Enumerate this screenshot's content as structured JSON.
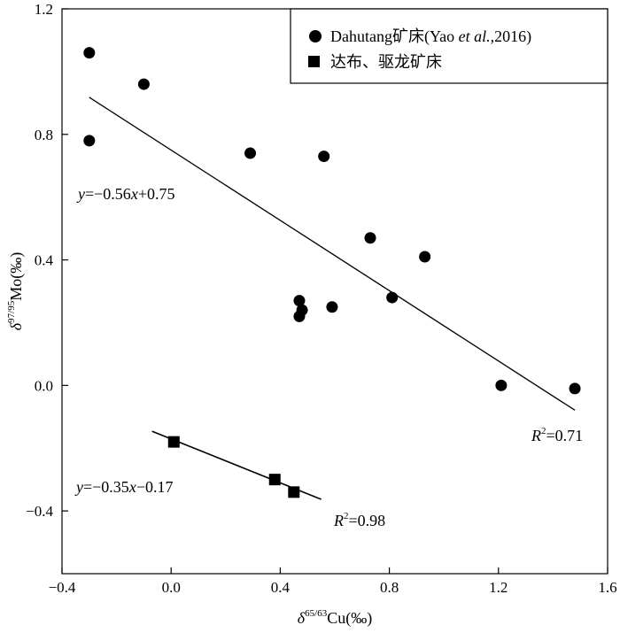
{
  "chart_data": {
    "type": "scatter",
    "xlabel": {
      "prefix": "δ",
      "sup": "65/63",
      "suffix": "Cu(‰)"
    },
    "ylabel": {
      "prefix": "δ",
      "sup": "97/95",
      "suffix": "Mo(‰)"
    },
    "xlim": [
      -0.4,
      1.6
    ],
    "ylim": [
      -0.6,
      1.2
    ],
    "xticks": [
      "−0.4",
      "0.0",
      "0.4",
      "0.8",
      "1.2",
      "1.6"
    ],
    "xtick_values": [
      -0.4,
      0.0,
      0.4,
      0.8,
      1.2,
      1.6
    ],
    "yticks": [
      "1.2",
      "0.8",
      "0.4",
      "0.0",
      "−0.4"
    ],
    "ytick_values": [
      1.2,
      0.8,
      0.4,
      0.0,
      -0.4
    ],
    "grid": false,
    "legend_position": "top-right",
    "series": [
      {
        "name": "Dahutang矿床(Yao  et  al.,2016)",
        "legend_parts": [
          "Dahutang矿床(Yao  ",
          "et  al.",
          ",2016)"
        ],
        "marker": "circle",
        "points": [
          {
            "x": -0.3,
            "y": 1.06
          },
          {
            "x": -0.3,
            "y": 0.78
          },
          {
            "x": -0.1,
            "y": 0.96
          },
          {
            "x": 0.29,
            "y": 0.74
          },
          {
            "x": 0.56,
            "y": 0.73
          },
          {
            "x": 0.73,
            "y": 0.47
          },
          {
            "x": 0.93,
            "y": 0.41
          },
          {
            "x": 0.47,
            "y": 0.27
          },
          {
            "x": 0.48,
            "y": 0.24
          },
          {
            "x": 0.47,
            "y": 0.22
          },
          {
            "x": 0.59,
            "y": 0.25
          },
          {
            "x": 0.81,
            "y": 0.28
          },
          {
            "x": 1.21,
            "y": 0.0
          },
          {
            "x": 1.48,
            "y": -0.01
          }
        ],
        "fit": {
          "x": [
            -0.3,
            1.48
          ],
          "y": [
            0.918,
            -0.079
          ]
        },
        "equation": {
          "y": "y",
          "mid": "=−0.56",
          "x": "x",
          "end": "+0.75"
        },
        "r2": {
          "r": "R",
          "sup": "2",
          "end": "=0.71"
        }
      },
      {
        "name": "达布、驱龙矿床",
        "marker": "square",
        "points": [
          {
            "x": 0.01,
            "y": -0.18
          },
          {
            "x": 0.38,
            "y": -0.3
          },
          {
            "x": 0.45,
            "y": -0.34
          }
        ],
        "fit": {
          "x": [
            -0.07,
            0.55
          ],
          "y": [
            -0.146,
            -0.363
          ]
        },
        "equation": {
          "y": "y",
          "mid": "=−0.35",
          "x": "x",
          "end": "−0.17"
        },
        "r2": {
          "r": "R",
          "sup": "2",
          "end": "=0.98"
        }
      }
    ]
  }
}
